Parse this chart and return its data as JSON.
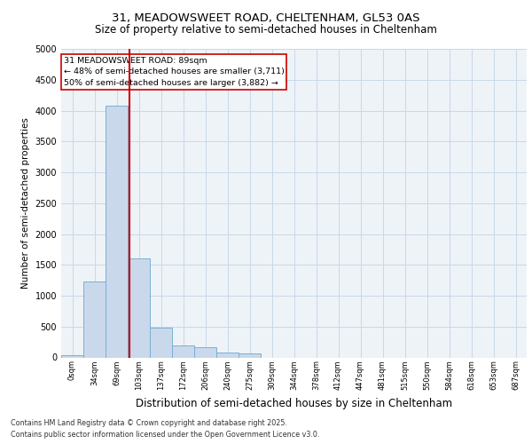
{
  "title_line1": "31, MEADOWSWEET ROAD, CHELTENHAM, GL53 0AS",
  "title_line2": "Size of property relative to semi-detached houses in Cheltenham",
  "xlabel": "Distribution of semi-detached houses by size in Cheltenham",
  "ylabel": "Number of semi-detached properties",
  "categories": [
    "0sqm",
    "34sqm",
    "69sqm",
    "103sqm",
    "137sqm",
    "172sqm",
    "206sqm",
    "240sqm",
    "275sqm",
    "309sqm",
    "344sqm",
    "378sqm",
    "412sqm",
    "447sqm",
    "481sqm",
    "515sqm",
    "550sqm",
    "584sqm",
    "618sqm",
    "653sqm",
    "687sqm"
  ],
  "bar_heights": [
    30,
    1230,
    4080,
    1600,
    480,
    200,
    160,
    80,
    60,
    0,
    0,
    0,
    0,
    0,
    0,
    0,
    0,
    0,
    0,
    0,
    0
  ],
  "bar_color": "#c9d9eb",
  "bar_edge_color": "#7bafd4",
  "grid_color": "#c8d8e8",
  "background_color": "#eef3f8",
  "red_line_x": 2.57,
  "property_label": "31 MEADOWSWEET ROAD: 89sqm",
  "annotation_line1": "← 48% of semi-detached houses are smaller (3,711)",
  "annotation_line2": "50% of semi-detached houses are larger (3,882) →",
  "annotation_box_color": "#ffffff",
  "annotation_border_color": "#cc0000",
  "footer_line1": "Contains HM Land Registry data © Crown copyright and database right 2025.",
  "footer_line2": "Contains public sector information licensed under the Open Government Licence v3.0.",
  "ylim": [
    0,
    5000
  ],
  "yticks": [
    0,
    500,
    1000,
    1500,
    2000,
    2500,
    3000,
    3500,
    4000,
    4500,
    5000
  ]
}
